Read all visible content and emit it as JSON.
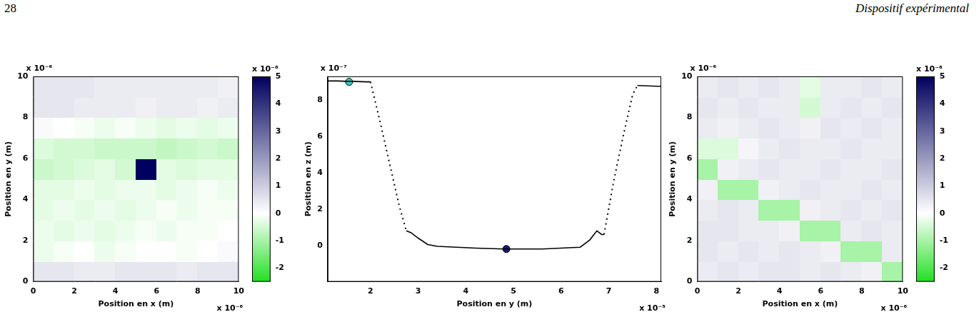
{
  "page": {
    "number": "28",
    "title": "Dispositif expérimental"
  },
  "chart_data": [
    {
      "type": "heatmap",
      "xlabel": "Position en x (m)",
      "ylabel": "Position en y (m)",
      "x_exponent": "x 10⁻⁶",
      "y_exponent": "x 10⁻⁶",
      "xlim": [
        0,
        10
      ],
      "ylim": [
        0,
        10
      ],
      "xticks": [
        0,
        2,
        4,
        6,
        8,
        10
      ],
      "yticks": [
        0,
        2,
        4,
        6,
        8,
        10
      ],
      "cells": {
        "x": [
          0.5,
          1.5,
          2.5,
          3.5,
          4.5,
          5.5,
          6.5,
          7.5,
          8.5,
          9.5
        ],
        "y": [
          0.5,
          1.5,
          2.5,
          3.5,
          4.5,
          5.5,
          6.5,
          7.5,
          8.5,
          9.5
        ],
        "z": [
          [
            0.5,
            0.5,
            0.4,
            0.4,
            0.5,
            0.5,
            0.5,
            0.4,
            0.5,
            0.5
          ],
          [
            -0.2,
            -0.1,
            0,
            -0.2,
            -0.1,
            0,
            0,
            -0.1,
            0,
            0.1
          ],
          [
            -0.2,
            -0.3,
            -0.2,
            -0.3,
            -0.2,
            -0.1,
            -0.2,
            -0.1,
            -0.1,
            0
          ],
          [
            -0.3,
            -0.2,
            -0.3,
            -0.2,
            -0.3,
            -0.2,
            -0.1,
            -0.2,
            -0.1,
            -0.1
          ],
          [
            -0.3,
            -0.3,
            -0.2,
            -0.3,
            -0.2,
            -0.2,
            -0.3,
            -0.2,
            -0.1,
            -0.2
          ],
          [
            -0.6,
            -0.5,
            -0.4,
            -0.3,
            -0.5,
            5,
            -0.3,
            -0.4,
            -0.3,
            -0.3
          ],
          [
            -0.4,
            -0.5,
            -0.5,
            -0.6,
            -0.6,
            -0.6,
            -0.7,
            -0.6,
            -0.5,
            -0.6
          ],
          [
            0.1,
            0,
            -0.1,
            -0.2,
            -0.1,
            -0.2,
            -0.3,
            -0.2,
            -0.3,
            -0.2
          ],
          [
            0.5,
            0.5,
            0.4,
            0.4,
            0.4,
            0.3,
            0.4,
            0.4,
            0.3,
            0.4
          ],
          [
            0.5,
            0.5,
            0.5,
            0.4,
            0.4,
            0.4,
            0.4,
            0.4,
            0.4,
            0.3
          ]
        ]
      },
      "colorbar": {
        "lim": [
          -2.5,
          5
        ],
        "ticks": [
          -2,
          -1,
          0,
          1,
          2,
          3,
          4,
          5
        ],
        "exponent": "x 10⁻⁸",
        "color_stops": [
          -2.5,
          0,
          5
        ],
        "colors": [
          "#22e022",
          "#ffffff",
          "#00005e"
        ]
      }
    },
    {
      "type": "line",
      "xlabel": "Position en y (m)",
      "ylabel": "Position en z (m)",
      "x_exponent": "x 10⁻⁵",
      "y_exponent": "x 10⁻⁷",
      "xlim": [
        1.1,
        8.1
      ],
      "ylim": [
        -2,
        9.3
      ],
      "xticks": [
        2,
        3,
        4,
        5,
        6,
        7,
        8
      ],
      "yticks": [
        0,
        2,
        4,
        6,
        8
      ],
      "series": [
        {
          "color": "#000000",
          "line_style": "solid",
          "x": [
            1.1,
            1.3,
            1.5,
            1.7,
            1.9,
            2.0
          ],
          "values": [
            9.05,
            9.05,
            9.03,
            9.02,
            9.0,
            9.0
          ]
        },
        {
          "color": "#000000",
          "line_style": "dotted",
          "x": [
            2.0,
            2.2,
            2.4,
            2.6,
            2.75
          ],
          "values": [
            9.0,
            6.8,
            4.5,
            2.2,
            0.8
          ]
        },
        {
          "color": "#000000",
          "line_style": "solid",
          "x": [
            2.75,
            2.85,
            3.0,
            3.2,
            3.4,
            3.8,
            4.2,
            4.8,
            5.2,
            5.6,
            6.0,
            6.4,
            6.6,
            6.75,
            6.85,
            6.9
          ],
          "values": [
            0.8,
            0.7,
            0.4,
            0.05,
            -0.05,
            -0.1,
            -0.15,
            -0.2,
            -0.2,
            -0.2,
            -0.15,
            -0.1,
            0.3,
            0.8,
            0.6,
            0.6
          ]
        },
        {
          "color": "#000000",
          "line_style": "dotted",
          "x": [
            6.9,
            7.1,
            7.3,
            7.5,
            7.6
          ],
          "values": [
            0.6,
            3.5,
            6.0,
            8.3,
            8.8
          ]
        },
        {
          "color": "#000000",
          "line_style": "solid",
          "x": [
            7.6,
            7.8,
            8.0,
            8.1
          ],
          "values": [
            8.8,
            8.78,
            8.76,
            8.75
          ]
        },
        {
          "color": "#33cccc",
          "marker": "circle",
          "x": [
            1.55
          ],
          "values": [
            9.0
          ]
        },
        {
          "color": "#1a1a7a",
          "marker": "circle",
          "x": [
            4.85
          ],
          "values": [
            -0.2
          ]
        }
      ]
    },
    {
      "type": "heatmap",
      "xlabel": "Position en x (m)",
      "ylabel": "Position en y (m)",
      "x_exponent": "x 10⁻⁶",
      "y_exponent": "x 10⁻⁶",
      "xlim": [
        0,
        10
      ],
      "ylim": [
        0,
        10
      ],
      "xticks": [
        0,
        2,
        4,
        6,
        8,
        10
      ],
      "yticks": [
        0,
        2,
        4,
        6,
        8,
        10
      ],
      "cells": {
        "x": [
          0.5,
          1.5,
          2.5,
          3.5,
          4.5,
          5.5,
          6.5,
          7.5,
          8.5,
          9.5
        ],
        "y": [
          0.5,
          1.5,
          2.5,
          3.5,
          4.5,
          5.5,
          6.5,
          7.5,
          8.5,
          9.5
        ],
        "z": [
          [
            0.4,
            0.5,
            0.4,
            0.5,
            0.5,
            0.4,
            0.5,
            0.4,
            0.3,
            -1.0
          ],
          [
            0.5,
            0.4,
            0.5,
            0.4,
            0.5,
            0.4,
            0.3,
            -1.0,
            -1.0,
            0.4
          ],
          [
            0.5,
            0.5,
            0.4,
            0.4,
            0.3,
            -1.0,
            -1.0,
            0.4,
            0.5,
            0.4
          ],
          [
            0.4,
            0.5,
            0.4,
            -1.0,
            -1.0,
            0.3,
            0.4,
            0.5,
            0.4,
            0.5
          ],
          [
            0.3,
            -1.0,
            -1.0,
            0.3,
            0.4,
            0.5,
            0.4,
            0.4,
            0.5,
            0.4
          ],
          [
            -1.0,
            0.3,
            0.4,
            0.5,
            0.4,
            0.4,
            0.5,
            0.4,
            0.4,
            0.5
          ],
          [
            -0.4,
            -0.4,
            0.2,
            0.4,
            0.5,
            0.4,
            0.4,
            0.5,
            0.4,
            0.4
          ],
          [
            0.4,
            0.3,
            0.4,
            0.5,
            0.4,
            0.3,
            0.5,
            0.4,
            0.5,
            0.4
          ],
          [
            0.5,
            0.4,
            0.5,
            0.4,
            0.4,
            -0.5,
            0.4,
            0.5,
            0.4,
            0.5
          ],
          [
            0.4,
            0.5,
            0.4,
            0.5,
            0.4,
            -0.3,
            0.4,
            0.4,
            0.5,
            0.4
          ]
        ]
      },
      "colorbar": {
        "lim": [
          -2.5,
          5
        ],
        "ticks": [
          -2,
          -1,
          0,
          1,
          2,
          3,
          4,
          5
        ],
        "exponent": "x 10⁻⁸",
        "color_stops": [
          -2.5,
          0,
          5
        ],
        "colors": [
          "#22e022",
          "#ffffff",
          "#00005e"
        ]
      }
    }
  ]
}
